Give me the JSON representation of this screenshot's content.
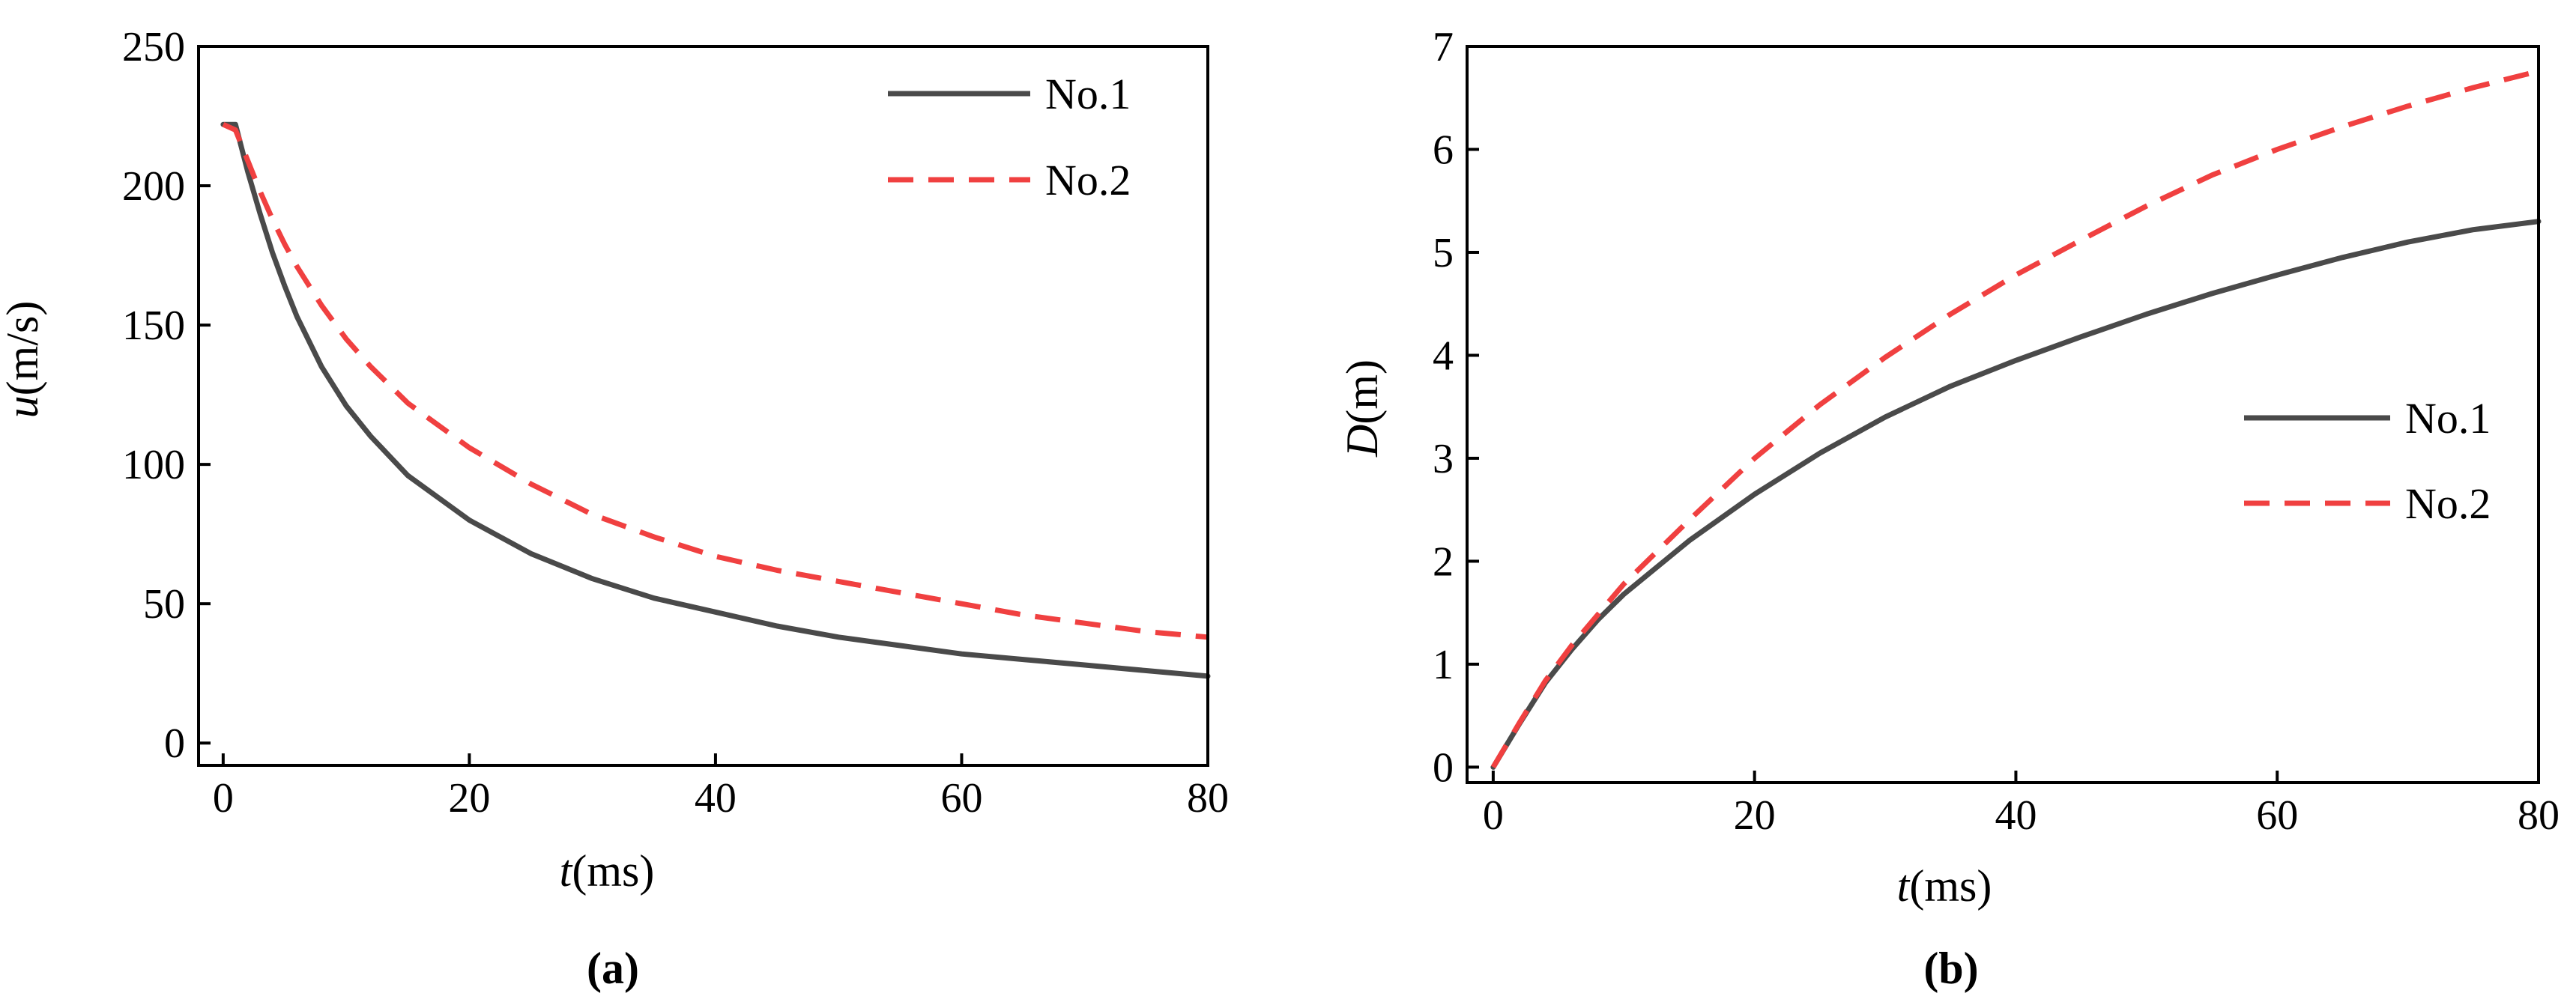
{
  "chart_data": [
    {
      "type": "line",
      "panel_label": "(a)",
      "xlabel_var": "t",
      "xlabel_unit": "(ms)",
      "ylabel_var": "u",
      "ylabel_unit": "(m/s)",
      "xlim": [
        -2,
        80
      ],
      "ylim": [
        -8,
        250
      ],
      "xticks": [
        0,
        20,
        40,
        60,
        80
      ],
      "yticks": [
        0,
        50,
        100,
        150,
        200,
        250
      ],
      "legend_position": "top-right",
      "series": [
        {
          "name": "No.1",
          "style": "solid",
          "color": "#4a4a4a",
          "x": [
            0,
            1,
            2,
            3,
            4,
            5,
            6,
            8,
            10,
            12,
            15,
            20,
            25,
            30,
            35,
            40,
            45,
            50,
            55,
            60,
            65,
            70,
            75,
            80
          ],
          "y": [
            222,
            222,
            205,
            190,
            176,
            164,
            153,
            135,
            121,
            110,
            96,
            80,
            68,
            59,
            52,
            47,
            42,
            38,
            35,
            32,
            30,
            28,
            26,
            24
          ]
        },
        {
          "name": "No.2",
          "style": "dashed",
          "color": "#f04040",
          "x": [
            0,
            1,
            2,
            3,
            4,
            5,
            6,
            8,
            10,
            12,
            15,
            20,
            25,
            30,
            35,
            40,
            45,
            50,
            55,
            60,
            65,
            70,
            75,
            80
          ],
          "y": [
            222,
            220,
            209,
            198,
            188,
            179,
            171,
            157,
            145,
            135,
            122,
            106,
            93,
            82,
            74,
            67,
            62,
            58,
            54,
            50,
            46,
            43,
            40,
            38
          ]
        }
      ]
    },
    {
      "type": "line",
      "panel_label": "(b)",
      "xlabel_var": "t",
      "xlabel_unit": "(ms)",
      "ylabel_var": "D",
      "ylabel_unit": "(m)",
      "xlim": [
        -2,
        80
      ],
      "ylim": [
        -0.15,
        7
      ],
      "xticks": [
        0,
        20,
        40,
        60,
        80
      ],
      "yticks": [
        0,
        1,
        2,
        3,
        4,
        5,
        6,
        7
      ],
      "legend_position": "right",
      "series": [
        {
          "name": "No.1",
          "style": "solid",
          "color": "#4a4a4a",
          "x": [
            0,
            2,
            4,
            6,
            8,
            10,
            15,
            20,
            25,
            30,
            35,
            40,
            45,
            50,
            55,
            60,
            65,
            70,
            75,
            80
          ],
          "y": [
            0,
            0.42,
            0.82,
            1.14,
            1.43,
            1.68,
            2.2,
            2.65,
            3.05,
            3.4,
            3.7,
            3.95,
            4.18,
            4.4,
            4.6,
            4.78,
            4.95,
            5.1,
            5.22,
            5.3
          ]
        },
        {
          "name": "No.2",
          "style": "dashed",
          "color": "#f04040",
          "x": [
            0,
            2,
            4,
            6,
            8,
            10,
            15,
            20,
            25,
            30,
            35,
            40,
            45,
            50,
            55,
            60,
            65,
            70,
            75,
            80
          ],
          "y": [
            0,
            0.43,
            0.84,
            1.18,
            1.48,
            1.78,
            2.4,
            3.0,
            3.52,
            3.98,
            4.4,
            4.78,
            5.12,
            5.45,
            5.75,
            6.0,
            6.22,
            6.42,
            6.6,
            6.76
          ]
        }
      ]
    }
  ]
}
